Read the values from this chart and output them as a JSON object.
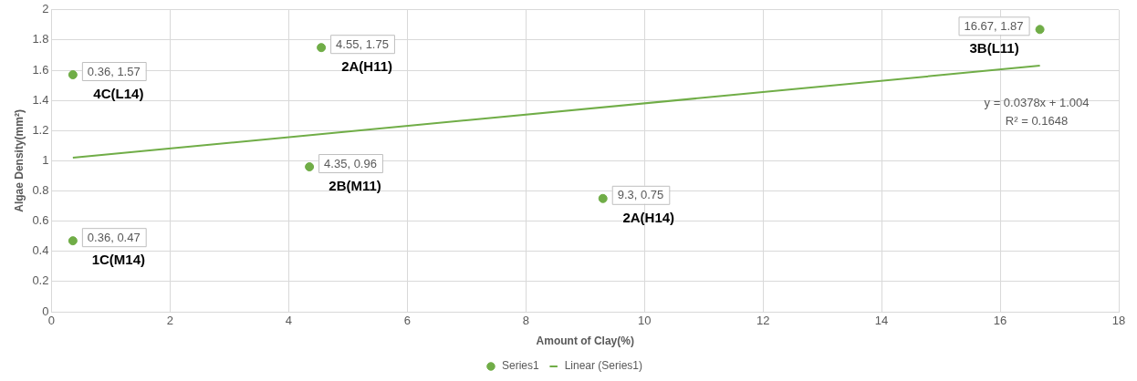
{
  "chart_data": {
    "type": "scatter",
    "xlabel": "Amount of Clay(%)",
    "ylabel": "Algae Density(mm²)",
    "xlim": [
      0,
      18
    ],
    "xticks": [
      0,
      2,
      4,
      6,
      8,
      10,
      12,
      14,
      16,
      18
    ],
    "ylim": [
      0,
      2
    ],
    "yticks": [
      0,
      0.2,
      0.4,
      0.6,
      0.8,
      1,
      1.2,
      1.4,
      1.6,
      1.8,
      2
    ],
    "grid": true,
    "legend": "bottom",
    "series": [
      {
        "name": "Series1",
        "marker": "circle",
        "color": "#70ad47",
        "x": [
          0.36,
          0.36,
          4.55,
          4.35,
          9.3,
          16.67
        ],
        "values": [
          1.57,
          0.47,
          1.75,
          0.96,
          0.75,
          1.87
        ],
        "value_labels": [
          "0.36, 1.57",
          "0.36, 0.47",
          "4.55, 1.75",
          "4.35, 0.96",
          "9.3, 0.75",
          "16.67, 1.87"
        ]
      },
      {
        "name": "Linear (Series1)",
        "type": "line",
        "color": "#70ad47",
        "line_style": "solid",
        "x": [
          0.36,
          16.67
        ],
        "values": [
          1.02,
          1.63
        ]
      }
    ],
    "annotations": [
      {
        "text": "4C(L14)",
        "x": 0.36,
        "y": 1.57
      },
      {
        "text": "1C(M14)",
        "x": 0.36,
        "y": 0.47
      },
      {
        "text": "2A(H11)",
        "x": 4.55,
        "y": 1.75
      },
      {
        "text": "2B(M11)",
        "x": 4.35,
        "y": 0.96
      },
      {
        "text": "2A(H14)",
        "x": 9.3,
        "y": 0.75
      },
      {
        "text": "3B(L11)",
        "x": 16.67,
        "y": 1.87
      },
      "y = 0.0378x + 1.004",
      "R² = 0.1648"
    ]
  }
}
